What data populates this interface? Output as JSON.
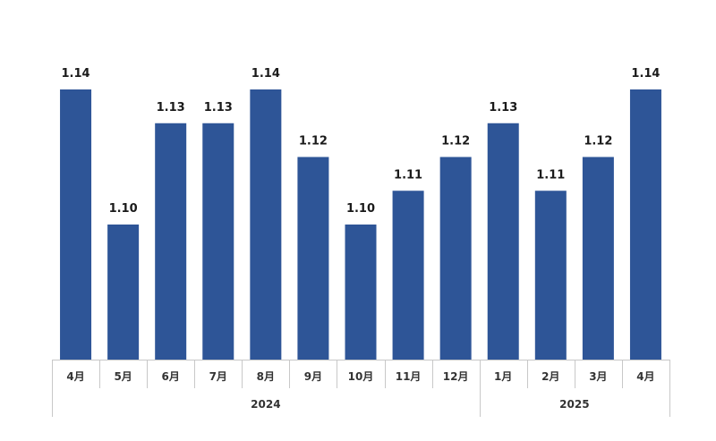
{
  "chart_data": {
    "type": "bar",
    "categories": [
      "4月",
      "5月",
      "6月",
      "7月",
      "8月",
      "9月",
      "10月",
      "11月",
      "12月",
      "1月",
      "2月",
      "3月",
      "4月"
    ],
    "values": [
      1.14,
      1.1,
      1.13,
      1.13,
      1.14,
      1.12,
      1.1,
      1.11,
      1.12,
      1.13,
      1.11,
      1.12,
      1.14
    ],
    "value_labels": [
      "1.14",
      "1.10",
      "1.13",
      "1.13",
      "1.14",
      "1.12",
      "1.10",
      "1.11",
      "1.12",
      "1.13",
      "1.11",
      "1.12",
      "1.14"
    ],
    "groups": [
      {
        "label": "2024",
        "start": 0,
        "end": 8
      },
      {
        "label": "2025",
        "start": 9,
        "end": 12
      }
    ],
    "title": "",
    "xlabel": "",
    "ylabel": "",
    "ylim": [
      1.06,
      1.14
    ],
    "grid": false,
    "bar_color": "#2e5597"
  }
}
